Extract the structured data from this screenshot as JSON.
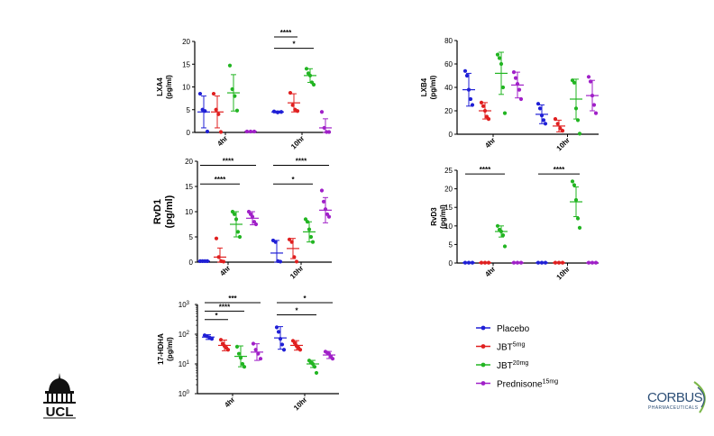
{
  "legend": {
    "items": [
      {
        "base": "Placebo",
        "sup": "",
        "color": "#1f1fd6"
      },
      {
        "base": "JBT",
        "sup": "5mg",
        "color": "#e01f1f"
      },
      {
        "base": "JBT",
        "sup": "20mg",
        "color": "#22b522"
      },
      {
        "base": "Prednisone",
        "sup": "15mg",
        "color": "#a020c8"
      }
    ]
  },
  "logos": {
    "ucl": "UCL",
    "corbus_main": "CORBUS",
    "corbus_sub": "PHARMACEUTICALS"
  },
  "chart_data": [
    {
      "id": "lxa4",
      "type": "scatter",
      "ylabel": "LXA4",
      "yunit": "(pg/ml)",
      "ylim": [
        0,
        20
      ],
      "yticks": [
        0,
        5,
        10,
        15,
        20
      ],
      "scale": "linear",
      "categories": [
        "4hr",
        "10hr"
      ],
      "series": [
        {
          "color": "#1f1fd6",
          "groups": [
            {
              "mean": 4.5,
              "sd": 3.5,
              "points": [
                8.5,
                5.0,
                4.7,
                0.2
              ]
            },
            {
              "mean": 4.5,
              "sd": 0.2,
              "points": [
                4.6,
                4.4,
                4.5
              ]
            }
          ]
        },
        {
          "color": "#e01f1f",
          "groups": [
            {
              "mean": 4.5,
              "sd": 3.5,
              "points": [
                8.5,
                5.0,
                4.0,
                0.1
              ]
            },
            {
              "mean": 6.5,
              "sd": 2.0,
              "points": [
                8.7,
                6.0,
                5.0,
                4.7
              ]
            }
          ]
        },
        {
          "color": "#22b522",
          "groups": [
            {
              "mean": 8.7,
              "sd": 4.0,
              "points": [
                14.7,
                9.5,
                8.0,
                4.8
              ]
            },
            {
              "mean": 12.5,
              "sd": 1.5,
              "points": [
                14.0,
                13.0,
                12.5,
                11.0,
                10.5
              ]
            }
          ]
        },
        {
          "color": "#a020c8",
          "groups": [
            {
              "mean": 0.2,
              "sd": 0.1,
              "points": [
                0.2,
                0.2,
                0.2
              ]
            },
            {
              "mean": 1.0,
              "sd": 2.0,
              "points": [
                4.5,
                1.0,
                0.1,
                0.1
              ]
            }
          ]
        }
      ],
      "brackets": [
        {
          "from": [
            1,
            0
          ],
          "to": [
            1,
            1
          ],
          "y": 21.0,
          "label": "****"
        },
        {
          "from": [
            1,
            0
          ],
          "to": [
            1,
            2
          ],
          "y": 18.5,
          "label": "*"
        }
      ]
    },
    {
      "id": "lxb4",
      "type": "scatter",
      "ylabel": "LXB4",
      "yunit": "(pg/ml)",
      "ylim": [
        0,
        80
      ],
      "yticks": [
        0,
        20,
        40,
        60,
        80
      ],
      "scale": "linear",
      "categories": [
        "4hr",
        "10hr"
      ],
      "series": [
        {
          "color": "#1f1fd6",
          "groups": [
            {
              "mean": 38,
              "sd": 14,
              "points": [
                54,
                50,
                38,
                30,
                25
              ]
            },
            {
              "mean": 17,
              "sd": 8,
              "points": [
                26,
                22,
                16,
                12,
                9
              ]
            }
          ]
        },
        {
          "color": "#e01f1f",
          "groups": [
            {
              "mean": 20,
              "sd": 7,
              "points": [
                27,
                24,
                20,
                15,
                13
              ]
            },
            {
              "mean": 7,
              "sd": 5,
              "points": [
                13,
                9,
                5,
                3
              ]
            }
          ]
        },
        {
          "color": "#22b522",
          "groups": [
            {
              "mean": 52,
              "sd": 18,
              "points": [
                68,
                65,
                60,
                40,
                18
              ]
            },
            {
              "mean": 30,
              "sd": 17,
              "points": [
                46,
                44,
                22,
                12,
                0.5
              ]
            }
          ]
        },
        {
          "color": "#a020c8",
          "groups": [
            {
              "mean": 42,
              "sd": 11,
              "points": [
                53,
                48,
                43,
                38,
                30
              ]
            },
            {
              "mean": 33,
              "sd": 13,
              "points": [
                49,
                45,
                33,
                25,
                18
              ]
            }
          ]
        }
      ],
      "brackets": []
    },
    {
      "id": "rvd1",
      "type": "scatter",
      "ylabel": "RvD1",
      "yunit": "(pg/ml)",
      "ylim": [
        0,
        20
      ],
      "yticks": [
        0,
        5,
        10,
        15,
        20
      ],
      "scale": "linear",
      "bigLabel": true,
      "categories": [
        "4hr",
        "10hr"
      ],
      "series": [
        {
          "color": "#1f1fd6",
          "groups": [
            {
              "mean": 0.2,
              "sd": 0.1,
              "points": [
                0.2,
                0.2,
                0.2,
                0.2
              ]
            },
            {
              "mean": 1.8,
              "sd": 2.5,
              "points": [
                4.3,
                4.0,
                0.2,
                0.1
              ]
            }
          ]
        },
        {
          "color": "#e01f1f",
          "groups": [
            {
              "mean": 1.0,
              "sd": 1.8,
              "points": [
                4.7,
                1.0,
                0.2,
                0.1
              ]
            },
            {
              "mean": 2.7,
              "sd": 2.0,
              "points": [
                4.5,
                4.0,
                1.0,
                0.1
              ]
            }
          ]
        },
        {
          "color": "#22b522",
          "groups": [
            {
              "mean": 7.5,
              "sd": 2.5,
              "points": [
                10.0,
                9.5,
                8.5,
                6.0,
                5.0
              ]
            },
            {
              "mean": 6.0,
              "sd": 2.0,
              "points": [
                8.5,
                8.0,
                6.5,
                5.0,
                4.0
              ]
            }
          ]
        },
        {
          "color": "#a020c8",
          "groups": [
            {
              "mean": 8.7,
              "sd": 1.3,
              "points": [
                10.0,
                9.5,
                9.0,
                8.0,
                7.5
              ]
            },
            {
              "mean": 10.3,
              "sd": 2.5,
              "points": [
                14.2,
                12.0,
                10.5,
                9.5,
                9.0
              ]
            }
          ]
        }
      ],
      "brackets": [
        {
          "from": [
            0,
            0
          ],
          "to": [
            0,
            3
          ],
          "y": 19.2,
          "label": "****"
        },
        {
          "from": [
            0,
            0
          ],
          "to": [
            0,
            2
          ],
          "y": 15.5,
          "label": "****"
        },
        {
          "from": [
            1,
            0
          ],
          "to": [
            1,
            3
          ],
          "y": 19.2,
          "label": "****"
        },
        {
          "from": [
            1,
            0
          ],
          "to": [
            1,
            2
          ],
          "y": 15.5,
          "label": "*"
        }
      ]
    },
    {
      "id": "rvd3",
      "type": "scatter",
      "ylabel": "RvD3",
      "yunit": "(pg/ml)",
      "ylim": [
        0,
        25
      ],
      "yticks": [
        0,
        5,
        10,
        15,
        20,
        25
      ],
      "scale": "linear",
      "categories": [
        "4hr",
        "10hr"
      ],
      "series": [
        {
          "color": "#1f1fd6",
          "groups": [
            {
              "mean": 0.1,
              "sd": 0.05,
              "points": [
                0.1,
                0.1,
                0.1
              ]
            },
            {
              "mean": 0.1,
              "sd": 0.05,
              "points": [
                0.1,
                0.1,
                0.1
              ]
            }
          ]
        },
        {
          "color": "#e01f1f",
          "groups": [
            {
              "mean": 0.1,
              "sd": 0.05,
              "points": [
                0.1,
                0.1,
                0.1
              ]
            },
            {
              "mean": 0.1,
              "sd": 0.05,
              "points": [
                0.1,
                0.1,
                0.1
              ]
            }
          ]
        },
        {
          "color": "#22b522",
          "groups": [
            {
              "mean": 8.5,
              "sd": 1.5,
              "points": [
                10.0,
                9.0,
                8.5,
                7.5,
                4.5
              ]
            },
            {
              "mean": 16.5,
              "sd": 4.0,
              "points": [
                22.0,
                21.0,
                17.0,
                12.0,
                9.5
              ]
            }
          ]
        },
        {
          "color": "#a020c8",
          "groups": [
            {
              "mean": 0.1,
              "sd": 0.05,
              "points": [
                0.1,
                0.1,
                0.1
              ]
            },
            {
              "mean": 0.1,
              "sd": 0.05,
              "points": [
                0.1,
                0.1,
                0.1
              ]
            }
          ]
        }
      ],
      "brackets": [
        {
          "from": [
            0,
            0
          ],
          "to": [
            0,
            2
          ],
          "y": 24.0,
          "label": "****"
        },
        {
          "from": [
            1,
            0
          ],
          "to": [
            1,
            2
          ],
          "y": 24.0,
          "label": "****"
        }
      ]
    },
    {
      "id": "hdha",
      "type": "scatter",
      "ylabel": "17-HDHA",
      "yunit": "(pg/ml)",
      "ylim": [
        1,
        1000
      ],
      "scale": "log",
      "yticks": [
        1,
        10,
        100,
        1000
      ],
      "ytickLabels": [
        [
          "10",
          "0"
        ],
        [
          "10",
          "1"
        ],
        [
          "10",
          "2"
        ],
        [
          "10",
          "3"
        ]
      ],
      "categories": [
        "4hr",
        "10hr"
      ],
      "series": [
        {
          "color": "#1f1fd6",
          "groups": [
            {
              "mean": 80,
              "sd": 0.08,
              "points": [
                92,
                85,
                78,
                70
              ]
            },
            {
              "mean": 75,
              "sd": 0.38,
              "points": [
                170,
                120,
                70,
                45,
                30
              ]
            }
          ]
        },
        {
          "color": "#e01f1f",
          "groups": [
            {
              "mean": 42,
              "sd": 0.18,
              "points": [
                65,
                48,
                40,
                35,
                30
              ]
            },
            {
              "mean": 42,
              "sd": 0.16,
              "points": [
                60,
                50,
                40,
                35,
                30
              ]
            }
          ]
        },
        {
          "color": "#22b522",
          "groups": [
            {
              "mean": 18,
              "sd": 0.35,
              "points": [
                38,
                22,
                16,
                10,
                8
              ]
            },
            {
              "mean": 10,
              "sd": 0.12,
              "points": [
                13,
                11,
                10,
                8,
                5
              ]
            }
          ]
        },
        {
          "color": "#a020c8",
          "groups": [
            {
              "mean": 25,
              "sd": 0.28,
              "points": [
                48,
                30,
                22,
                15
              ]
            },
            {
              "mean": 20,
              "sd": 0.12,
              "points": [
                26,
                24,
                22,
                18,
                15
              ]
            }
          ]
        }
      ],
      "brackets": [
        {
          "from": [
            0,
            0
          ],
          "to": [
            0,
            3
          ],
          "y": 1150,
          "label": "***"
        },
        {
          "from": [
            0,
            0
          ],
          "to": [
            0,
            2
          ],
          "y": 600,
          "label": "****"
        },
        {
          "from": [
            0,
            0
          ],
          "to": [
            0,
            1
          ],
          "y": 310,
          "label": "*"
        },
        {
          "from": [
            1,
            0
          ],
          "to": [
            1,
            3
          ],
          "y": 1150,
          "label": "*"
        },
        {
          "from": [
            1,
            0
          ],
          "to": [
            1,
            2
          ],
          "y": 450,
          "label": "*"
        }
      ]
    }
  ]
}
